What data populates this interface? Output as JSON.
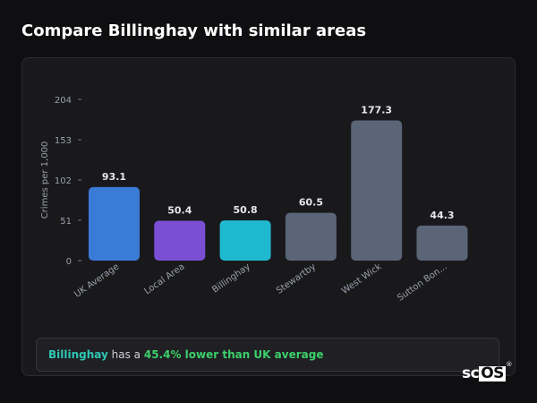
{
  "page": {
    "title": "Compare Billinghay with similar areas"
  },
  "chart_data": {
    "type": "bar",
    "ylabel": "Crimes per 1,000",
    "xlabel": "",
    "ylim": [
      0,
      204
    ],
    "yticks": [
      0,
      51,
      102,
      153,
      204
    ],
    "grid": false,
    "categories": [
      "UK Average",
      "Local Area",
      "Billinghay",
      "Stewartby",
      "West Wick",
      "Sutton Bon..."
    ],
    "values": [
      93.1,
      50.4,
      50.8,
      60.5,
      177.3,
      44.3
    ],
    "value_labels": [
      "93.1",
      "50.4",
      "50.8",
      "60.5",
      "177.3",
      "44.3"
    ],
    "colors": [
      "#3a7bd8",
      "#7a4fd4",
      "#1fb9cf",
      "#5b6578",
      "#5b6578",
      "#5b6578"
    ]
  },
  "callout": {
    "place": "Billinghay",
    "middle": " has a ",
    "stat": "45.4% lower than UK average"
  },
  "logo": {
    "prefix": "sc",
    "boxed": "OS",
    "mark": "®"
  }
}
